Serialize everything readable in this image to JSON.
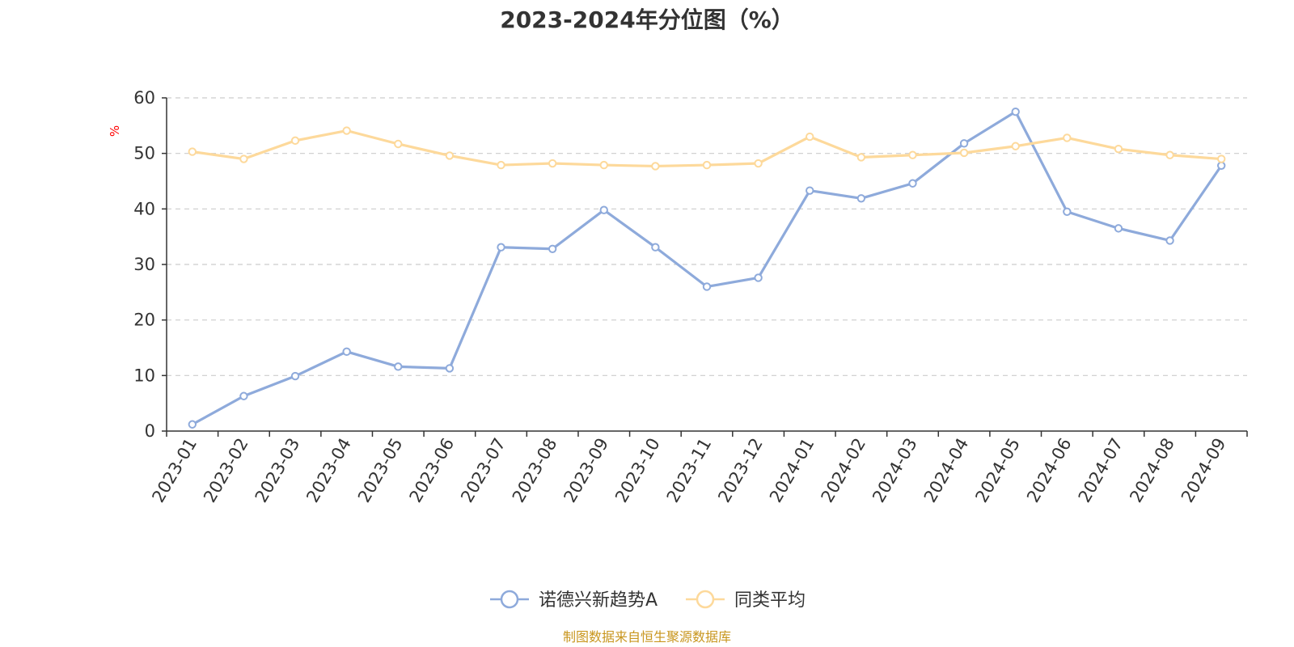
{
  "chart_data": {
    "type": "line",
    "title": "2023-2024年分位图（%）",
    "ylabel": "%",
    "xlabel": "",
    "ylim": [
      0,
      60
    ],
    "yticks": [
      0,
      10,
      20,
      30,
      40,
      50,
      60
    ],
    "grid": true,
    "categories": [
      "2023-01",
      "2023-02",
      "2023-03",
      "2023-04",
      "2023-05",
      "2023-06",
      "2023-07",
      "2023-08",
      "2023-09",
      "2023-10",
      "2023-11",
      "2023-12",
      "2024-01",
      "2024-02",
      "2024-03",
      "2024-04",
      "2024-05",
      "2024-06",
      "2024-07",
      "2024-08",
      "2024-09"
    ],
    "series": [
      {
        "name": "诺德兴新趋势A",
        "color": "#8eaadb",
        "values": [
          1.2,
          6.3,
          9.9,
          14.3,
          11.6,
          11.3,
          33.1,
          32.8,
          39.8,
          33.1,
          26.0,
          27.6,
          43.3,
          41.9,
          44.6,
          51.8,
          57.5,
          39.5,
          36.5,
          34.3,
          47.8
        ]
      },
      {
        "name": "同类平均",
        "color": "#fdd99b",
        "values": [
          50.3,
          49.0,
          52.3,
          54.1,
          51.7,
          49.6,
          47.9,
          48.2,
          47.9,
          47.7,
          47.9,
          48.2,
          53.0,
          49.3,
          49.7,
          50.1,
          51.3,
          52.8,
          50.8,
          49.7,
          49.0
        ]
      }
    ],
    "legend_position": "bottom-center",
    "source": "制图数据来自恒生聚源数据库"
  },
  "colors": {
    "axis": "#333333",
    "grid": "#cccccc",
    "unit_label": "#ff0000",
    "source_text": "#c8961e"
  }
}
